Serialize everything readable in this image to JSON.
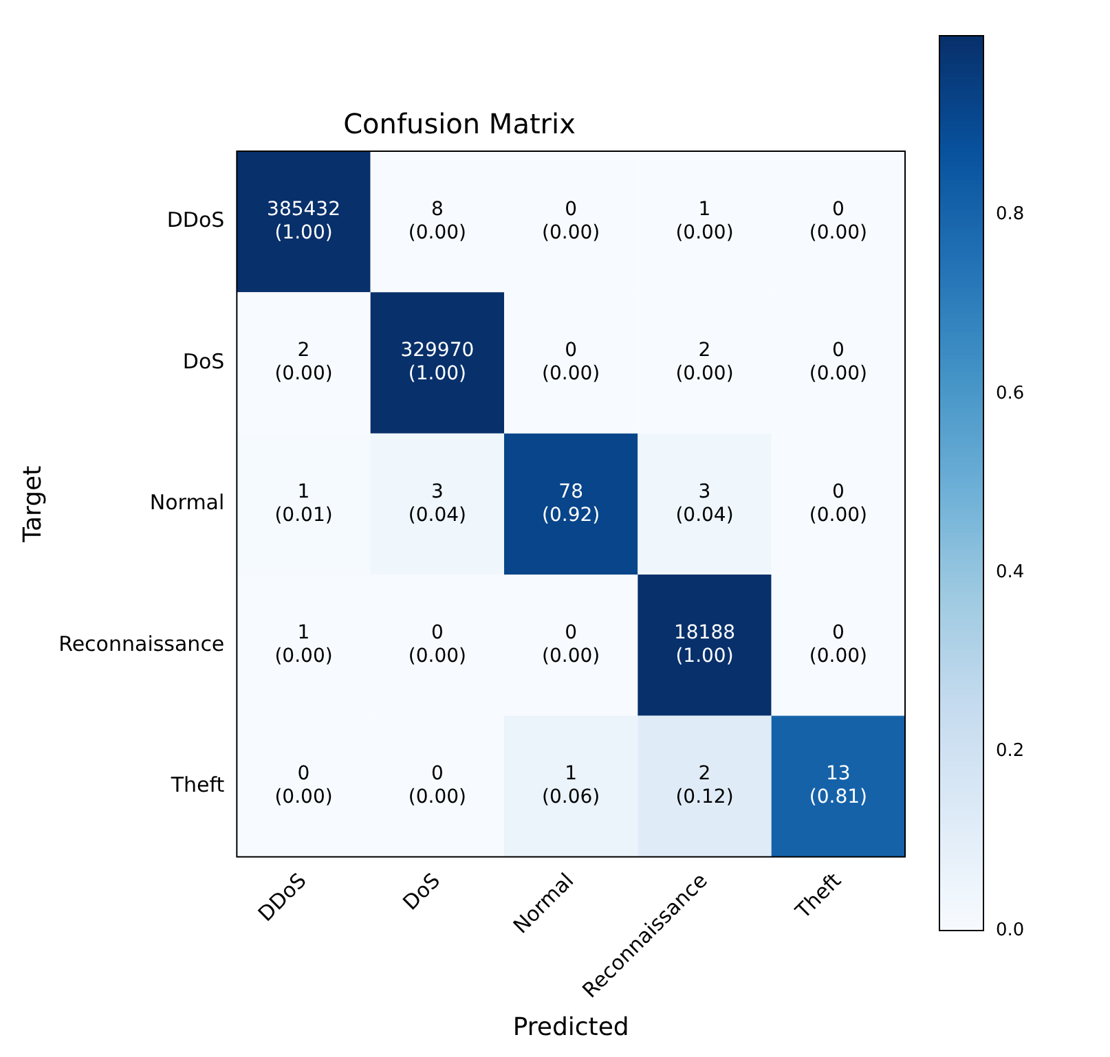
{
  "chart_data": {
    "type": "heatmap",
    "title": "Confusion Matrix",
    "xlabel": "Predicted",
    "ylabel": "Target",
    "categories": [
      "DDoS",
      "DoS",
      "Normal",
      "Reconnaissance",
      "Theft"
    ],
    "y_categories": [
      "DDoS",
      "DoS",
      "Normal",
      "Reconnaissance",
      "Theft"
    ],
    "cells": [
      [
        1.0,
        0.0,
        0.0,
        0.0,
        0.0
      ],
      [
        0.0,
        1.0,
        0.0,
        0.0,
        0.0
      ],
      [
        0.01,
        0.04,
        0.92,
        0.04,
        0.0
      ],
      [
        0.0,
        0.0,
        0.0,
        1.0,
        0.0
      ],
      [
        0.0,
        0.0,
        0.06,
        0.12,
        0.81
      ]
    ],
    "cell_labels": [
      [
        "385432\n(1.00)",
        "8\n(0.00)",
        "0\n(0.00)",
        "1\n(0.00)",
        "0\n(0.00)"
      ],
      [
        "2\n(0.00)",
        "329970\n(1.00)",
        "0\n(0.00)",
        "2\n(0.00)",
        "0\n(0.00)"
      ],
      [
        "1\n(0.01)",
        "3\n(0.04)",
        "78\n(0.92)",
        "3\n(0.04)",
        "0\n(0.00)"
      ],
      [
        "1\n(0.00)",
        "0\n(0.00)",
        "0\n(0.00)",
        "18188\n(1.00)",
        "0\n(0.00)"
      ],
      [
        "0\n(0.00)",
        "0\n(0.00)",
        "1\n(0.06)",
        "2\n(0.12)",
        "13\n(0.81)"
      ]
    ],
    "clim": [
      0,
      1
    ],
    "cticks": [
      {
        "value": 0,
        "label": "0.0"
      },
      {
        "value": 0.2,
        "label": "0.2"
      },
      {
        "value": 0.4,
        "label": "0.4"
      },
      {
        "value": 0.6,
        "label": "0.6"
      },
      {
        "value": 0.8,
        "label": "0.8"
      }
    ]
  }
}
